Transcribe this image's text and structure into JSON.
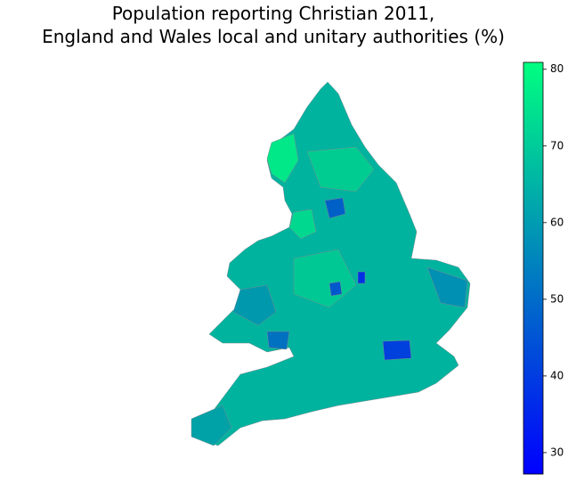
{
  "chart_data": {
    "type": "choropleth",
    "title": [
      "Population reporting Christian 2011,",
      "England and Wales local and unitary authorities (%)"
    ],
    "colorbar": {
      "ylim": [
        27.2,
        80.9
      ],
      "yticks": [
        30,
        40,
        50,
        60,
        70,
        80
      ],
      "colors": [
        "#0000ff",
        "#00ff80"
      ]
    }
  }
}
